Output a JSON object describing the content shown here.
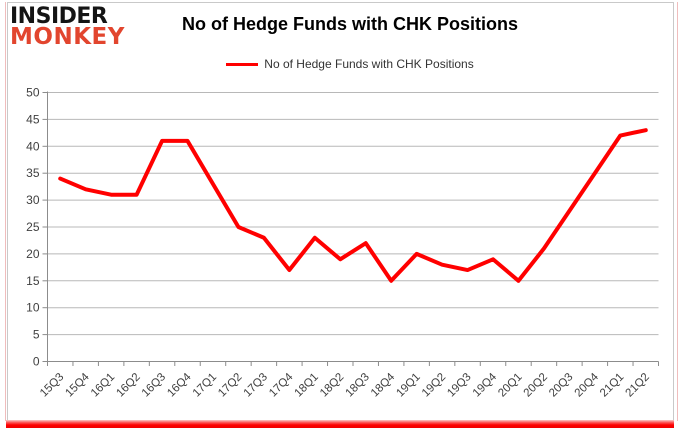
{
  "logo": {
    "line1": "INSIDER",
    "line2": "MONKEY"
  },
  "header": {
    "title": "No of Hedge Funds with CHK Positions"
  },
  "legend": {
    "label": "No of Hedge Funds with CHK Positions",
    "color": "#ff0000"
  },
  "chart_data": {
    "type": "line",
    "title": "No of Hedge Funds with CHK Positions",
    "categories": [
      "15Q3",
      "15Q4",
      "16Q1",
      "16Q2",
      "16Q3",
      "16Q4",
      "17Q1",
      "17Q2",
      "17Q3",
      "17Q4",
      "18Q1",
      "18Q2",
      "18Q3",
      "18Q4",
      "19Q1",
      "19Q2",
      "19Q3",
      "19Q4",
      "20Q1",
      "20Q2",
      "20Q3",
      "20Q4",
      "21Q1",
      "21Q2"
    ],
    "series": [
      {
        "name": "No of Hedge Funds with CHK Positions",
        "color": "#ff0000",
        "values": [
          34,
          32,
          31,
          31,
          41,
          41,
          33,
          25,
          23,
          17,
          23,
          19,
          22,
          15,
          20,
          18,
          17,
          19,
          15,
          21,
          28,
          35,
          42,
          43
        ]
      }
    ],
    "xlabel": "",
    "ylabel": "",
    "ylim": [
      0,
      50
    ],
    "ytick_step": 5,
    "grid": true,
    "legend_position": "top",
    "x_label_rotation_deg": -45
  },
  "colors": {
    "line_red": "#ff0000",
    "logo_red": "#e2452e",
    "gridline": "#b8b8b8",
    "axis": "#8c8c8c",
    "tick_label": "#404040",
    "bottom_bar": "#ff0000",
    "frame_gray": "#c9c9c9",
    "frame_pink": "#f0bdbd"
  }
}
